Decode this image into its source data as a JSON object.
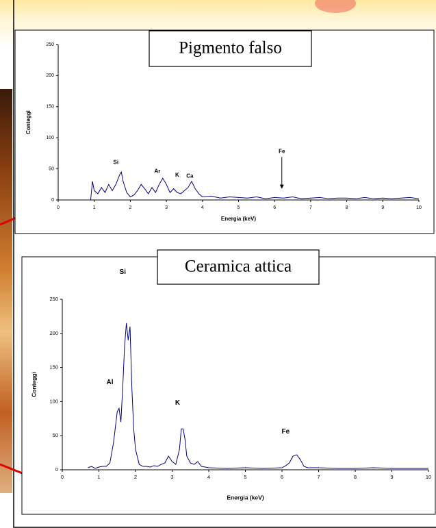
{
  "chart_data": [
    {
      "type": "line",
      "title": "Pigmento falso",
      "xlabel": "Energia (keV)",
      "ylabel": "Conteggi",
      "xlim": [
        0,
        10
      ],
      "ylim": [
        0,
        250
      ],
      "xticks": [
        0,
        1,
        2,
        3,
        4,
        5,
        6,
        7,
        8,
        9,
        10
      ],
      "yticks": [
        0,
        50,
        100,
        150,
        200,
        250
      ],
      "color": "#000080",
      "x": [
        0.9,
        0.95,
        1.0,
        1.1,
        1.2,
        1.3,
        1.4,
        1.5,
        1.6,
        1.7,
        1.75,
        1.8,
        1.9,
        2.0,
        2.1,
        2.2,
        2.3,
        2.4,
        2.5,
        2.6,
        2.7,
        2.8,
        2.9,
        3.0,
        3.1,
        3.2,
        3.3,
        3.4,
        3.5,
        3.6,
        3.7,
        3.8,
        3.9,
        4.0,
        4.25,
        4.5,
        4.75,
        5.0,
        5.25,
        5.5,
        5.75,
        6.0,
        6.25,
        6.5,
        6.75,
        7.0,
        7.25,
        7.5,
        7.75,
        8.0,
        8.25,
        8.5,
        8.75,
        9.0,
        9.25,
        9.5,
        9.75,
        10.0
      ],
      "values": [
        0,
        30,
        15,
        10,
        20,
        12,
        25,
        15,
        25,
        40,
        45,
        30,
        12,
        5,
        8,
        15,
        25,
        18,
        10,
        20,
        12,
        25,
        35,
        25,
        12,
        18,
        12,
        10,
        15,
        20,
        30,
        18,
        10,
        5,
        6,
        3,
        5,
        4,
        3,
        5,
        2,
        4,
        3,
        5,
        2,
        3,
        4,
        2,
        3,
        3,
        2,
        4,
        2,
        3,
        2,
        3,
        4,
        2
      ],
      "annotations": [
        {
          "text": "Si",
          "x": 1.6,
          "y": 60
        },
        {
          "text": "Ar",
          "x": 2.75,
          "y": 46
        },
        {
          "text": "K",
          "x": 3.3,
          "y": 40
        },
        {
          "text": "Ca",
          "x": 3.65,
          "y": 38
        },
        {
          "text": "Fe",
          "x": 6.2,
          "y": 78,
          "arrow_to": 18
        }
      ]
    },
    {
      "type": "line",
      "title": "Ceramica attica",
      "xlabel": "Energia (keV)",
      "ylabel": "Conteggi",
      "xlim": [
        0,
        10
      ],
      "ylim": [
        0,
        250
      ],
      "xticks": [
        0,
        1,
        2,
        3,
        4,
        5,
        6,
        7,
        8,
        9,
        10
      ],
      "yticks": [
        0,
        50,
        100,
        150,
        200,
        250
      ],
      "color": "#000080",
      "x": [
        0.7,
        0.8,
        0.9,
        1.0,
        1.1,
        1.2,
        1.3,
        1.4,
        1.5,
        1.55,
        1.6,
        1.65,
        1.7,
        1.75,
        1.8,
        1.85,
        1.9,
        1.95,
        2.0,
        2.1,
        2.2,
        2.3,
        2.4,
        2.5,
        2.6,
        2.7,
        2.8,
        2.9,
        3.0,
        3.1,
        3.2,
        3.25,
        3.3,
        3.35,
        3.4,
        3.5,
        3.6,
        3.7,
        3.8,
        3.9,
        4.0,
        4.5,
        5.0,
        5.5,
        6.0,
        6.1,
        6.2,
        6.3,
        6.4,
        6.5,
        6.6,
        6.7,
        7.0,
        7.5,
        8.0,
        8.5,
        9.0,
        9.5,
        10.0
      ],
      "values": [
        3,
        5,
        2,
        4,
        5,
        5,
        10,
        40,
        85,
        90,
        70,
        120,
        180,
        215,
        190,
        210,
        120,
        60,
        30,
        8,
        5,
        5,
        4,
        6,
        5,
        8,
        10,
        20,
        12,
        8,
        30,
        60,
        60,
        45,
        20,
        10,
        8,
        12,
        5,
        4,
        3,
        2,
        3,
        2,
        3,
        6,
        10,
        20,
        22,
        15,
        5,
        3,
        3,
        2,
        2,
        3,
        2,
        2,
        2
      ],
      "annotations": [
        {
          "text": "Si",
          "x": 1.65,
          "y": 290
        },
        {
          "text": "Al",
          "x": 1.3,
          "y": 128
        },
        {
          "text": "K",
          "x": 3.15,
          "y": 98
        },
        {
          "text": "Fe",
          "x": 6.1,
          "y": 56
        }
      ]
    }
  ]
}
